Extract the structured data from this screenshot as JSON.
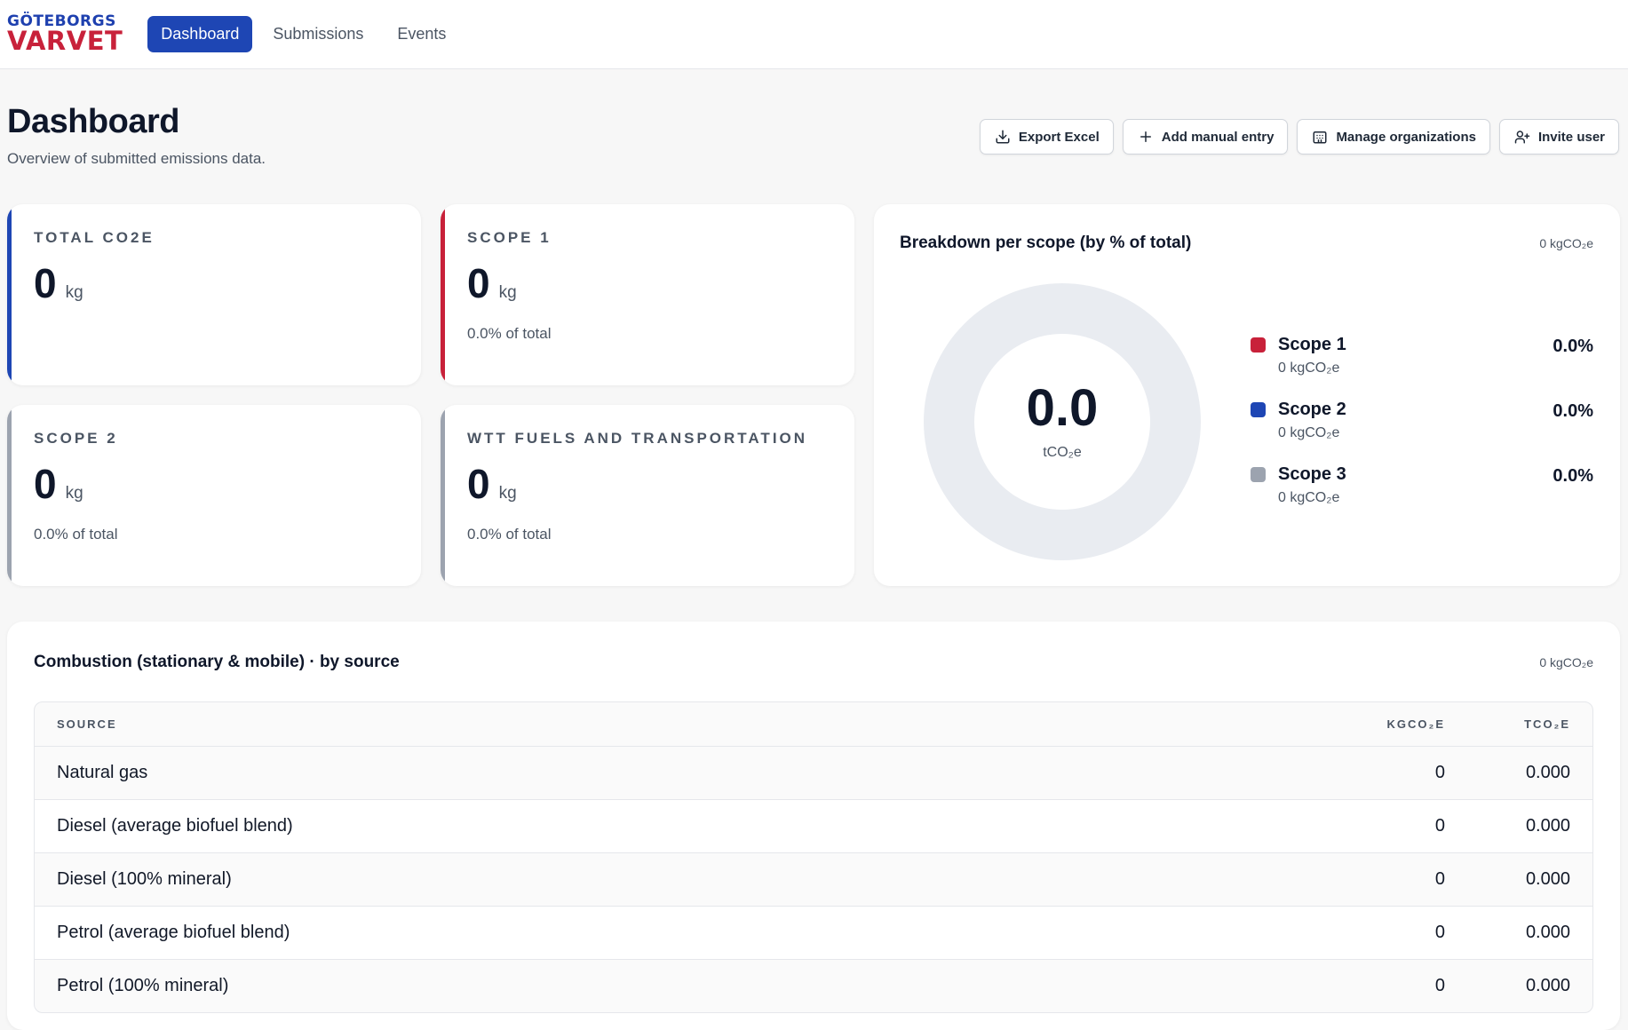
{
  "logo": {
    "line1": "GÖTEBORGS",
    "line2": "VARVET"
  },
  "nav": [
    {
      "label": "Dashboard",
      "active": true
    },
    {
      "label": "Submissions",
      "active": false
    },
    {
      "label": "Events",
      "active": false
    }
  ],
  "header": {
    "title": "Dashboard",
    "subtitle": "Overview of submitted emissions data."
  },
  "actions": {
    "export_label": "Export Excel",
    "add_label": "Add manual entry",
    "manage_label": "Manage organizations",
    "invite_label": "Invite user"
  },
  "cards": [
    {
      "label": "TOTAL CO2E",
      "value": "0",
      "unit": "kg",
      "sub": "",
      "accent": "#1e46b4"
    },
    {
      "label": "SCOPE 1",
      "value": "0",
      "unit": "kg",
      "sub": "0.0% of total",
      "accent": "#c8213a"
    },
    {
      "label": "SCOPE 2",
      "value": "0",
      "unit": "kg",
      "sub": "0.0% of total",
      "accent": "#9ca3af"
    },
    {
      "label": "WTT FUELS AND TRANSPORTATION",
      "value": "0",
      "unit": "kg",
      "sub": "0.0% of total",
      "accent": "#9ca3af"
    }
  ],
  "breakdown": {
    "title": "Breakdown per scope (by % of total)",
    "total": "0 kgCO₂e",
    "center_value": "0.0",
    "center_unit": "tCO₂e",
    "legend": [
      {
        "name": "Scope 1",
        "amount": "0 kgCO₂e",
        "pct": "0.0%",
        "color": "#c8213a"
      },
      {
        "name": "Scope 2",
        "amount": "0 kgCO₂e",
        "pct": "0.0%",
        "color": "#1e46b4"
      },
      {
        "name": "Scope 3",
        "amount": "0 kgCO₂e",
        "pct": "0.0%",
        "color": "#9ca3af"
      }
    ]
  },
  "combustion": {
    "title": "Combustion (stationary & mobile) · by source",
    "total": "0 kgCO₂e",
    "headers": {
      "source": "SOURCE",
      "kg": "KGCO₂E",
      "t": "TCO₂E"
    },
    "rows": [
      {
        "source": "Natural gas",
        "kg": "0",
        "t": "0.000"
      },
      {
        "source": "Diesel (average biofuel blend)",
        "kg": "0",
        "t": "0.000"
      },
      {
        "source": "Diesel (100% mineral)",
        "kg": "0",
        "t": "0.000"
      },
      {
        "source": "Petrol (average biofuel blend)",
        "kg": "0",
        "t": "0.000"
      },
      {
        "source": "Petrol (100% mineral)",
        "kg": "0",
        "t": "0.000"
      }
    ]
  }
}
